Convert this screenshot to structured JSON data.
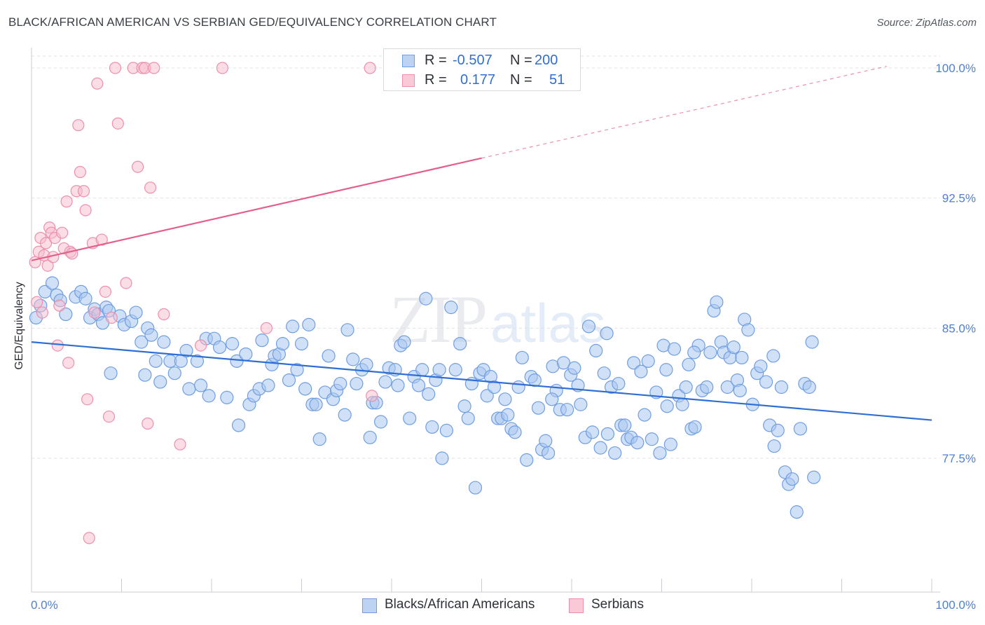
{
  "header": {
    "title": "BLACK/AFRICAN AMERICAN VS SERBIAN GED/EQUIVALENCY CORRELATION CHART",
    "source": "Source: ZipAtlas.com"
  },
  "watermark": {
    "zip": "ZIP",
    "atlas": "atlas"
  },
  "legend": {
    "rows": [
      {
        "r_label": "R =",
        "r_value": "-0.507",
        "n_label": "N =",
        "n_value": "200"
      },
      {
        "r_label": "R =",
        "r_value": "0.177",
        "n_label": "N =",
        "n_value": "51"
      }
    ]
  },
  "bottom_legend": {
    "series1": "Blacks/African Americans",
    "series2": "Serbians"
  },
  "colors": {
    "blue_fill": "#a9c6f0",
    "blue_stroke": "#6f9ee3",
    "blue_line": "#2f6fd4",
    "pink_fill": "#f7bccd",
    "pink_stroke": "#ee8fac",
    "pink_line": "#e4608a",
    "grid": "#dde1e6",
    "axis_label": "#4f7fd1"
  },
  "chart_data": {
    "type": "scatter",
    "title": "BLACK/AFRICAN AMERICAN VS SERBIAN GED/EQUIVALENCY CORRELATION CHART",
    "xlabel": "",
    "ylabel": "GED/Equivalency",
    "x_tick_labels": [
      "0.0%",
      "100.0%"
    ],
    "y_ticks": [
      77.5,
      85.0,
      92.5,
      100.0
    ],
    "y_tick_labels": [
      "77.5%",
      "85.0%",
      "92.5%",
      "100.0%"
    ],
    "xlim": [
      0,
      100
    ],
    "ylim": [
      70.0,
      101.0
    ],
    "grid": "horizontal dashed",
    "legend_position": "top-center",
    "series": [
      {
        "name": "Blacks/African Americans",
        "R": -0.507,
        "N": 200,
        "trend": {
          "x": [
            0,
            100
          ],
          "y": [
            84.2,
            79.7
          ]
        },
        "points": [
          [
            0.5,
            85.6
          ],
          [
            1.0,
            86.3
          ],
          [
            1.5,
            87.1
          ],
          [
            2.3,
            87.6
          ],
          [
            2.8,
            86.9
          ],
          [
            3.2,
            86.6
          ],
          [
            3.8,
            85.8
          ],
          [
            4.9,
            86.8
          ],
          [
            5.5,
            87.1
          ],
          [
            6.0,
            86.7
          ],
          [
            6.5,
            85.6
          ],
          [
            7.0,
            86.1
          ],
          [
            7.4,
            85.8
          ],
          [
            7.9,
            85.3
          ],
          [
            8.3,
            86.2
          ],
          [
            8.6,
            86.0
          ],
          [
            8.8,
            82.4
          ],
          [
            9.8,
            85.7
          ],
          [
            10.3,
            85.2
          ],
          [
            11.1,
            85.4
          ],
          [
            11.6,
            85.9
          ],
          [
            12.2,
            84.2
          ],
          [
            12.6,
            82.3
          ],
          [
            12.9,
            85.0
          ],
          [
            13.3,
            84.6
          ],
          [
            13.8,
            83.1
          ],
          [
            14.3,
            81.9
          ],
          [
            14.7,
            84.2
          ],
          [
            15.4,
            83.1
          ],
          [
            15.9,
            82.4
          ],
          [
            16.6,
            83.1
          ],
          [
            17.2,
            83.7
          ],
          [
            17.5,
            81.5
          ],
          [
            18.4,
            83.1
          ],
          [
            18.8,
            81.7
          ],
          [
            19.4,
            84.4
          ],
          [
            19.7,
            81.1
          ],
          [
            20.3,
            84.4
          ],
          [
            20.9,
            83.9
          ],
          [
            21.7,
            81.0
          ],
          [
            22.3,
            84.1
          ],
          [
            22.8,
            83.1
          ],
          [
            23.0,
            79.4
          ],
          [
            23.8,
            83.5
          ],
          [
            24.2,
            80.6
          ],
          [
            24.7,
            81.1
          ],
          [
            25.3,
            81.5
          ],
          [
            25.6,
            84.3
          ],
          [
            26.3,
            81.7
          ],
          [
            26.7,
            82.9
          ],
          [
            27.0,
            83.4
          ],
          [
            27.5,
            83.5
          ],
          [
            27.9,
            84.1
          ],
          [
            28.6,
            82.0
          ],
          [
            29.0,
            85.1
          ],
          [
            29.5,
            82.6
          ],
          [
            30.0,
            84.1
          ],
          [
            30.4,
            81.5
          ],
          [
            30.8,
            85.2
          ],
          [
            31.2,
            80.6
          ],
          [
            31.6,
            80.6
          ],
          [
            32.0,
            78.6
          ],
          [
            32.6,
            81.3
          ],
          [
            33.0,
            83.4
          ],
          [
            33.5,
            80.9
          ],
          [
            33.9,
            81.4
          ],
          [
            34.3,
            81.8
          ],
          [
            34.8,
            80.0
          ],
          [
            35.1,
            84.9
          ],
          [
            35.7,
            83.2
          ],
          [
            36.1,
            81.8
          ],
          [
            36.7,
            82.6
          ],
          [
            37.2,
            82.9
          ],
          [
            37.6,
            78.7
          ],
          [
            37.9,
            80.7
          ],
          [
            38.3,
            80.7
          ],
          [
            38.8,
            79.6
          ],
          [
            39.3,
            81.9
          ],
          [
            39.7,
            82.7
          ],
          [
            40.4,
            82.6
          ],
          [
            40.7,
            81.7
          ],
          [
            41.0,
            84.0
          ],
          [
            41.4,
            84.2
          ],
          [
            42.0,
            79.8
          ],
          [
            42.5,
            82.2
          ],
          [
            43.0,
            81.7
          ],
          [
            43.4,
            82.6
          ],
          [
            43.8,
            86.7
          ],
          [
            44.1,
            81.2
          ],
          [
            44.5,
            79.3
          ],
          [
            44.9,
            82.0
          ],
          [
            45.3,
            82.6
          ],
          [
            45.6,
            77.5
          ],
          [
            46.1,
            79.1
          ],
          [
            46.6,
            86.2
          ],
          [
            47.1,
            82.6
          ],
          [
            47.6,
            84.1
          ],
          [
            48.1,
            80.5
          ],
          [
            48.5,
            79.8
          ],
          [
            48.9,
            81.8
          ],
          [
            49.3,
            75.8
          ],
          [
            49.8,
            82.4
          ],
          [
            50.2,
            82.6
          ],
          [
            50.6,
            81.1
          ],
          [
            51.0,
            82.2
          ],
          [
            51.4,
            81.6
          ],
          [
            51.8,
            79.8
          ],
          [
            52.2,
            79.8
          ],
          [
            52.6,
            80.9
          ],
          [
            52.9,
            80.0
          ],
          [
            53.3,
            79.2
          ],
          [
            53.7,
            79.0
          ],
          [
            54.1,
            81.6
          ],
          [
            54.5,
            83.3
          ],
          [
            55.0,
            77.4
          ],
          [
            55.5,
            82.2
          ],
          [
            55.9,
            82.0
          ],
          [
            56.3,
            80.4
          ],
          [
            56.7,
            78.0
          ],
          [
            57.1,
            78.5
          ],
          [
            57.4,
            77.8
          ],
          [
            57.9,
            82.8
          ],
          [
            58.3,
            81.4
          ],
          [
            58.7,
            80.3
          ],
          [
            59.1,
            83.0
          ],
          [
            59.5,
            80.3
          ],
          [
            59.9,
            82.3
          ],
          [
            60.3,
            82.7
          ],
          [
            60.7,
            81.7
          ],
          [
            61.0,
            80.6
          ],
          [
            61.5,
            78.7
          ],
          [
            61.9,
            85.1
          ],
          [
            62.3,
            79.0
          ],
          [
            62.7,
            83.7
          ],
          [
            63.2,
            78.1
          ],
          [
            63.6,
            82.4
          ],
          [
            64.0,
            78.9
          ],
          [
            64.4,
            81.6
          ],
          [
            64.8,
            77.8
          ],
          [
            65.2,
            81.8
          ],
          [
            65.5,
            79.4
          ],
          [
            65.9,
            79.4
          ],
          [
            66.2,
            78.6
          ],
          [
            66.6,
            78.7
          ],
          [
            66.9,
            83.0
          ],
          [
            67.3,
            78.4
          ],
          [
            67.7,
            82.5
          ],
          [
            68.1,
            80.0
          ],
          [
            68.5,
            83.1
          ],
          [
            68.9,
            78.6
          ],
          [
            69.4,
            81.3
          ],
          [
            69.8,
            77.8
          ],
          [
            70.2,
            84.0
          ],
          [
            70.6,
            80.5
          ],
          [
            71.0,
            78.3
          ],
          [
            71.4,
            83.8
          ],
          [
            71.9,
            81.1
          ],
          [
            72.3,
            80.6
          ],
          [
            72.7,
            81.6
          ],
          [
            73.0,
            82.9
          ],
          [
            73.3,
            79.2
          ],
          [
            73.7,
            79.3
          ],
          [
            74.1,
            84.0
          ],
          [
            74.5,
            81.4
          ],
          [
            75.0,
            81.6
          ],
          [
            75.4,
            83.6
          ],
          [
            75.8,
            86.0
          ],
          [
            76.1,
            86.5
          ],
          [
            76.6,
            84.2
          ],
          [
            76.9,
            83.6
          ],
          [
            77.3,
            81.6
          ],
          [
            77.6,
            83.3
          ],
          [
            78.0,
            83.9
          ],
          [
            78.4,
            82.0
          ],
          [
            78.7,
            81.4
          ],
          [
            79.2,
            85.5
          ],
          [
            79.6,
            84.9
          ],
          [
            80.1,
            80.6
          ],
          [
            80.6,
            82.4
          ],
          [
            81.0,
            82.8
          ],
          [
            81.6,
            81.9
          ],
          [
            82.0,
            79.4
          ],
          [
            82.5,
            78.2
          ],
          [
            82.9,
            79.1
          ],
          [
            83.3,
            81.6
          ],
          [
            83.7,
            76.7
          ],
          [
            84.1,
            76.0
          ],
          [
            84.5,
            76.3
          ],
          [
            85.0,
            74.4
          ],
          [
            85.4,
            79.2
          ],
          [
            85.9,
            81.8
          ],
          [
            86.4,
            81.6
          ],
          [
            86.9,
            76.4
          ],
          [
            86.7,
            84.2
          ],
          [
            82.4,
            83.4
          ],
          [
            78.9,
            83.3
          ],
          [
            73.6,
            83.6
          ],
          [
            70.5,
            82.6
          ],
          [
            63.9,
            84.7
          ],
          [
            57.8,
            80.9
          ]
        ]
      },
      {
        "name": "Serbians",
        "R": 0.177,
        "N": 51,
        "trend": {
          "x": [
            0,
            50
          ],
          "y": [
            88.9,
            94.8
          ]
        },
        "trend_dashed": {
          "x": [
            50,
            95
          ],
          "y": [
            94.8,
            100.1
          ]
        },
        "points": [
          [
            0.4,
            88.8
          ],
          [
            0.6,
            86.5
          ],
          [
            0.8,
            89.4
          ],
          [
            1.0,
            90.2
          ],
          [
            1.2,
            85.9
          ],
          [
            1.4,
            89.2
          ],
          [
            1.6,
            89.9
          ],
          [
            1.8,
            88.6
          ],
          [
            2.0,
            90.8
          ],
          [
            2.2,
            90.5
          ],
          [
            2.4,
            89.1
          ],
          [
            2.6,
            90.2
          ],
          [
            2.9,
            84.0
          ],
          [
            3.1,
            86.3
          ],
          [
            3.4,
            90.5
          ],
          [
            3.6,
            89.6
          ],
          [
            3.9,
            92.3
          ],
          [
            4.1,
            83.0
          ],
          [
            4.3,
            89.4
          ],
          [
            4.5,
            89.3
          ],
          [
            5.0,
            92.9
          ],
          [
            5.2,
            96.7
          ],
          [
            5.4,
            94.0
          ],
          [
            5.8,
            92.9
          ],
          [
            6.0,
            91.8
          ],
          [
            6.2,
            80.9
          ],
          [
            6.4,
            72.9
          ],
          [
            6.8,
            89.9
          ],
          [
            7.0,
            85.9
          ],
          [
            7.3,
            99.1
          ],
          [
            7.8,
            90.1
          ],
          [
            8.2,
            87.1
          ],
          [
            8.6,
            79.9
          ],
          [
            8.9,
            85.6
          ],
          [
            9.3,
            100.0
          ],
          [
            9.6,
            96.8
          ],
          [
            10.5,
            87.6
          ],
          [
            11.3,
            100.0
          ],
          [
            11.8,
            94.3
          ],
          [
            12.3,
            100.0
          ],
          [
            12.6,
            100.0
          ],
          [
            12.9,
            79.5
          ],
          [
            13.2,
            93.1
          ],
          [
            13.6,
            100.0
          ],
          [
            14.7,
            85.8
          ],
          [
            16.5,
            78.3
          ],
          [
            18.8,
            84.0
          ],
          [
            21.2,
            100.0
          ],
          [
            26.1,
            85.0
          ],
          [
            37.6,
            100.0
          ],
          [
            37.8,
            81.1
          ]
        ]
      }
    ]
  }
}
